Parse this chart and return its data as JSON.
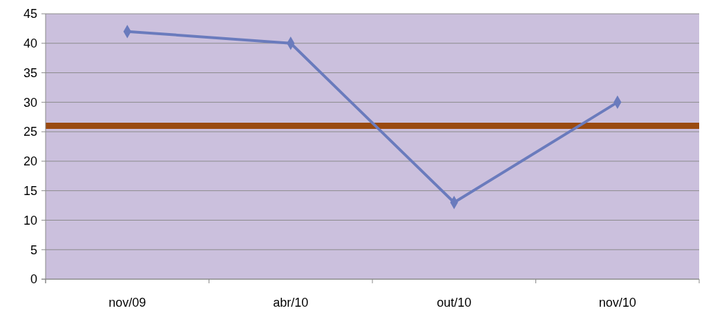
{
  "chart_data": {
    "type": "line",
    "categories": [
      "nov/09",
      "abr/10",
      "out/10",
      "nov/10"
    ],
    "series": [
      {
        "color": "#6a7bbd",
        "values": [
          42,
          40,
          13,
          30
        ]
      }
    ],
    "ylim": [
      0,
      45
    ],
    "yticks": [
      0,
      5,
      10,
      15,
      20,
      25,
      30,
      35,
      40,
      45
    ],
    "grid": "y",
    "marker": "diamond",
    "line_style": "solid",
    "ref_lines": [
      {
        "axis": "y",
        "value": 26,
        "color": "#9a4a10"
      }
    ]
  }
}
